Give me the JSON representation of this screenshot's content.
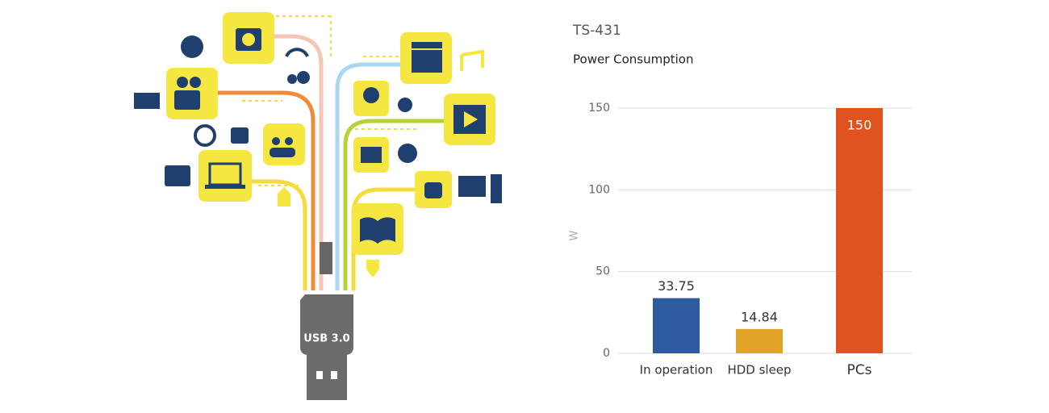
{
  "illustration": {
    "plug_label": "USB 3.0"
  },
  "chart_data": {
    "type": "bar",
    "title": "TS-431",
    "subtitle": "Power Consumption",
    "y_label": "W",
    "categories": [
      "In operation",
      "HDD sleep",
      "PCs"
    ],
    "values": [
      33.75,
      14.84,
      150
    ],
    "colors": [
      "#2e5b9f",
      "#e0a428",
      "#e0521e"
    ],
    "ylim": [
      0,
      150
    ],
    "yticks": [
      0,
      50,
      100,
      150
    ],
    "grid": true
  }
}
